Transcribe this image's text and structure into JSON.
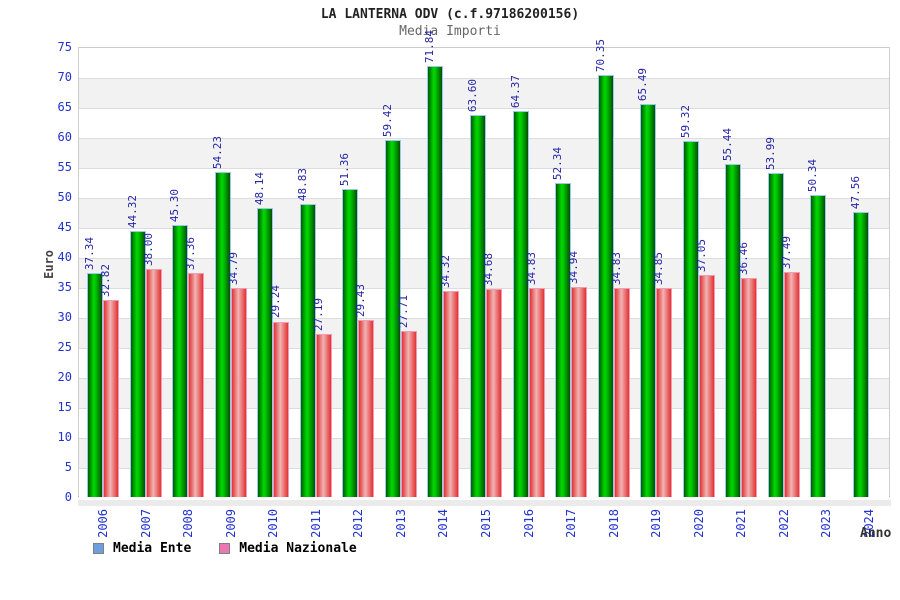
{
  "title": "LA LANTERNA ODV (c.f.97186200156)",
  "subtitle": "Media Importi",
  "y_axis_title": "Euro",
  "x_axis_title": "Anno",
  "legend": {
    "ente_label": "Media Ente",
    "nazionale_label": "Media Nazionale",
    "ente_swatch_color": "#6e9fdc",
    "nazionale_swatch_color": "#ec78b1"
  },
  "colors": {
    "axis_text_blue": "#2233cc",
    "value_label_blue": "#2525a5",
    "green_bar_mid": "#00d800",
    "green_bar_edge": "#015a01",
    "red_bar_mid": "#f0b4b4",
    "red_bar_edge": "#e33232",
    "band_gray": "#f2f2f2"
  },
  "chart_data": {
    "type": "bar",
    "title": "LA LANTERNA ODV (c.f.97186200156)",
    "subtitle": "Media Importi",
    "xlabel": "Anno",
    "ylabel": "Euro",
    "ylim": [
      0,
      75
    ],
    "ytick_step": 5,
    "grid": true,
    "legend_position": "bottom-left",
    "categories": [
      2006,
      2007,
      2008,
      2009,
      2010,
      2011,
      2012,
      2013,
      2014,
      2015,
      2016,
      2017,
      2018,
      2019,
      2020,
      2021,
      2022,
      2023,
      2024
    ],
    "series": [
      {
        "name": "Media Ente",
        "color": "green",
        "values": [
          37.34,
          44.32,
          45.3,
          54.23,
          48.14,
          48.83,
          51.36,
          59.42,
          71.84,
          63.6,
          64.37,
          52.34,
          70.35,
          65.49,
          59.32,
          55.44,
          53.99,
          50.34,
          47.56
        ]
      },
      {
        "name": "Media Nazionale",
        "color": "red",
        "values": [
          32.82,
          38.0,
          37.36,
          34.79,
          29.24,
          27.19,
          29.43,
          27.71,
          34.32,
          34.68,
          34.83,
          34.94,
          34.83,
          34.85,
          37.05,
          36.46,
          37.49,
          null,
          null
        ]
      }
    ]
  }
}
